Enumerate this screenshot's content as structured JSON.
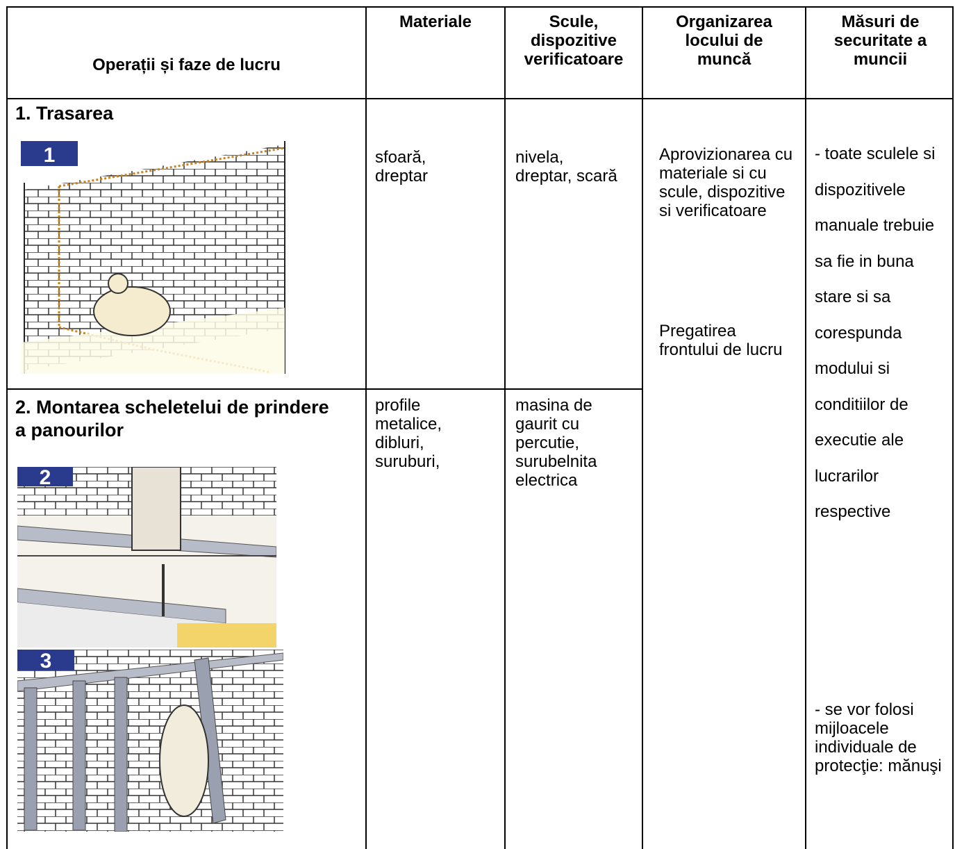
{
  "header": {
    "columns": [
      "Operații și faze de lucru",
      "Materiale",
      "Scule, dispozitive verificatoare",
      "Organizarea locului de muncă",
      "Măsuri de securitate a muncii"
    ]
  },
  "rows": [
    {
      "operation": "1. Trasarea",
      "materials": "sfoară, dreptar",
      "tools": "nivela, dreptar, scară",
      "images": [
        "1"
      ]
    },
    {
      "operation": "2. Montarea scheletelui de prindere a panourilor",
      "materials": "profile metalice, dibluri, suruburi,",
      "tools": "masina de gaurit cu percutie, surubelnita electrica",
      "images": [
        "2",
        "3"
      ]
    }
  ],
  "organization": [
    "Aprovizionarea cu materiale si cu scule, dispozitive si verificatoare",
    "Pregatirea frontului de lucru"
  ],
  "safety": [
    "- toate sculele si dispozitivele manuale trebuie sa fie in buna stare si sa corespunda modului si conditiilor de executie ale lucrarilor respective",
    "- se vor folosi mijloacele individuale de protecţie: mănuşi"
  ]
}
